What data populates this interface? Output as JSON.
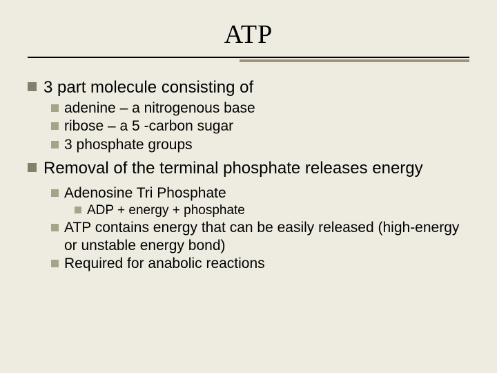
{
  "slide": {
    "title": "ATP",
    "background_color": "#eeece1",
    "bullet_color_l1": "#838069",
    "bullet_color_sub": "#a6a388",
    "underline_primary": "#000000",
    "underline_secondary": "#9c9480",
    "items": [
      {
        "level": 1,
        "text": "3 part molecule consisting of"
      },
      {
        "level": 2,
        "text": "adenine – a nitrogenous base"
      },
      {
        "level": 2,
        "text": "ribose – a 5 -carbon sugar"
      },
      {
        "level": 2,
        "text": "3 phosphate groups"
      },
      {
        "level": 1,
        "text": "Removal of the terminal phosphate releases energy"
      },
      {
        "level": 2,
        "text": "Adenosine Tri Phosphate"
      },
      {
        "level": 3,
        "text": "ADP + energy + phosphate"
      },
      {
        "level": 2,
        "text": "ATP contains energy that can be easily released (high-energy or unstable energy bond)"
      },
      {
        "level": 2,
        "text": "Required for anabolic reactions"
      }
    ]
  }
}
